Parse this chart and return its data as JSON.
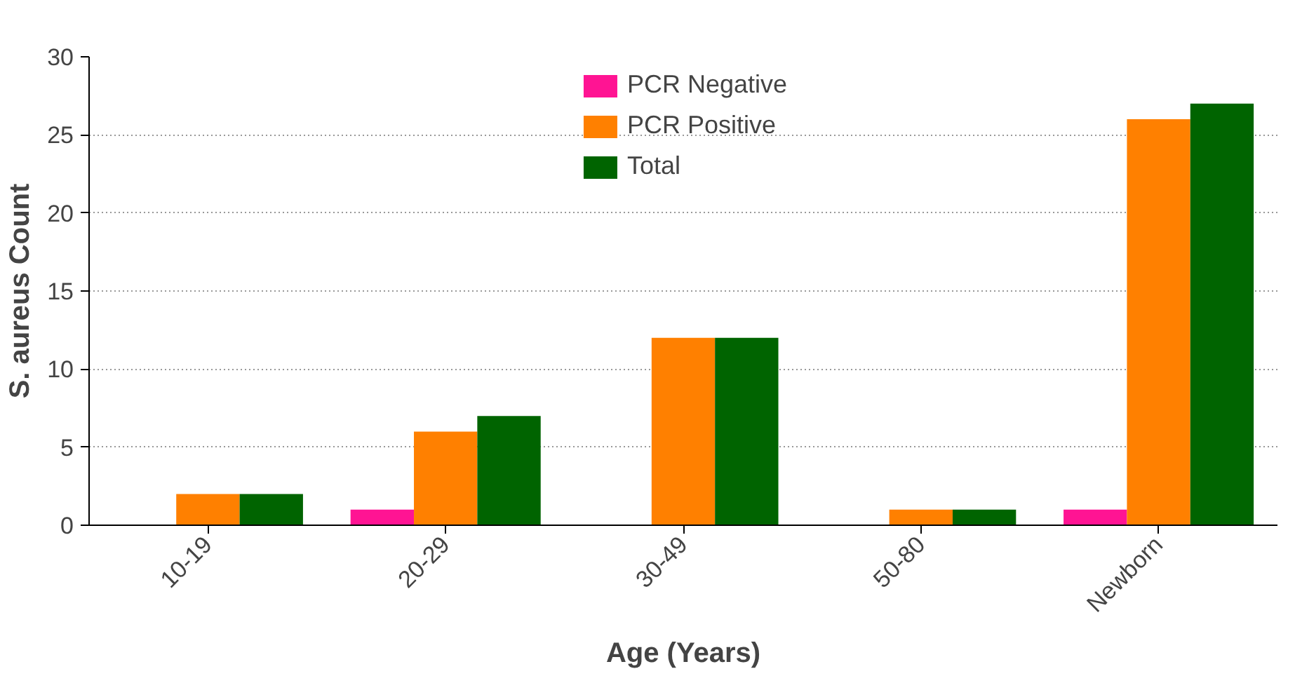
{
  "chart_data": {
    "type": "bar",
    "xlabel": "Age (Years)",
    "ylabel": "S. aureus Count",
    "categories": [
      "10-19",
      "20-29",
      "30-49",
      "50-80",
      "Newborn"
    ],
    "series": [
      {
        "name": "PCR Negative",
        "color": "#ff1493",
        "values": [
          0,
          1,
          0,
          0,
          1
        ]
      },
      {
        "name": "PCR Positive",
        "color": "#ff8000",
        "values": [
          2,
          6,
          12,
          1,
          26
        ]
      },
      {
        "name": "Total",
        "color": "#006400",
        "values": [
          2,
          7,
          12,
          1,
          27
        ]
      }
    ],
    "ylim": [
      0,
      30
    ],
    "yticks": [
      0,
      5,
      10,
      15,
      20,
      25,
      30
    ],
    "grid": "y",
    "legend": "top"
  }
}
